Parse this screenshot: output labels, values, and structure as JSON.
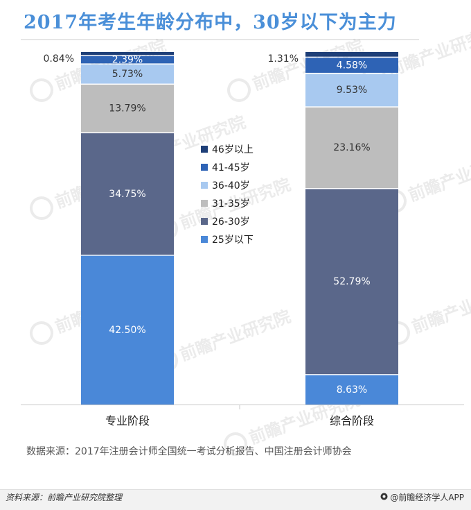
{
  "title": "2017年考生年龄分布中，30岁以下为主力",
  "source": "数据来源：2017年注册会计师全国统一考试分析报告、中国注册会计师协会",
  "footer": {
    "left": "资料来源：前瞻产业研究院整理",
    "right": "@前瞻经济学人APP"
  },
  "watermark": {
    "text": "前瞻产业研究院"
  },
  "chart_data": {
    "type": "bar",
    "stacked": true,
    "normalized_percent": true,
    "categories": [
      "专业阶段",
      "综合阶段"
    ],
    "series": [
      {
        "name": "25岁以下",
        "color": "#4a88d8",
        "label_color": "#ffffff",
        "values": [
          42.5,
          8.63
        ],
        "labels": [
          "42.50%",
          "8.63%"
        ]
      },
      {
        "name": "26-30岁",
        "color": "#5a678a",
        "label_color": "#ffffff",
        "values": [
          34.75,
          52.79
        ],
        "labels": [
          "34.75%",
          "52.79%"
        ]
      },
      {
        "name": "31-35岁",
        "color": "#bdbdbd",
        "label_color": "#333333",
        "values": [
          13.79,
          23.16
        ],
        "labels": [
          "13.79%",
          "23.16%"
        ]
      },
      {
        "name": "36-40岁",
        "color": "#a8c9f0",
        "label_color": "#333333",
        "values": [
          5.73,
          9.53
        ],
        "labels": [
          "5.73%",
          "9.53%"
        ]
      },
      {
        "name": "41-45岁",
        "color": "#2e63b5",
        "label_color": "#ffffff",
        "values": [
          2.39,
          4.58
        ],
        "labels": [
          "2.39%",
          "4.58%"
        ]
      },
      {
        "name": "46岁以上",
        "color": "#1e3f78",
        "label_color": "#333333",
        "values": [
          0.84,
          1.31
        ],
        "labels": [
          "0.84%",
          "1.31%"
        ]
      }
    ],
    "legend_position": "center",
    "grid": false
  }
}
